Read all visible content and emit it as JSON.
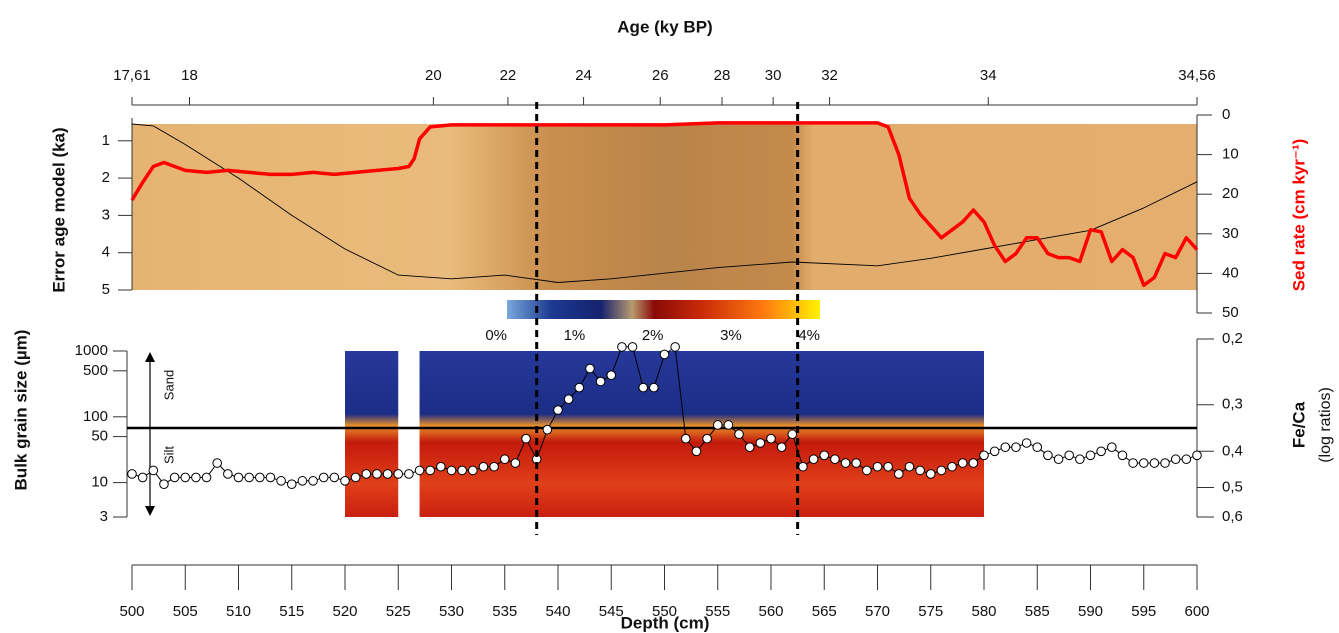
{
  "chart_data": [
    {
      "type": "line",
      "title": "Age (ky BP)",
      "xlim": [
        500,
        600
      ],
      "age_model": {
        "depth": [
          500,
          505.4,
          528.3,
          535.3,
          542.4,
          549.6,
          555.4,
          560.2,
          565.5,
          580.4,
          600
        ],
        "age": [
          17.61,
          18,
          20,
          22,
          24,
          26,
          28,
          30,
          32,
          34,
          34.56
        ]
      },
      "x2ticks": [
        {
          "value": 17.61,
          "label": "17,61"
        },
        18,
        20,
        22,
        24,
        26,
        28,
        30,
        32,
        34,
        {
          "value": 34.56,
          "label": "34,56"
        }
      ],
      "ylabel": "Error age model (ka)",
      "ylim": [
        5,
        0.55
      ],
      "yticks": [
        1,
        2,
        3,
        4,
        5
      ],
      "y2label": "Sed rate (cm kyr⁻¹)",
      "y2color": "#ff0000",
      "y2lim": [
        50,
        0
      ],
      "y2ticks": [
        0,
        10,
        20,
        30,
        40,
        50
      ],
      "series": [
        {
          "color": "#000000",
          "axis": "y",
          "width": 0.9,
          "x": [
            500,
            502,
            505,
            510,
            515,
            520,
            525,
            530,
            535,
            540,
            545,
            550,
            555,
            562,
            570,
            575,
            580,
            585,
            590,
            595,
            600
          ],
          "values": [
            0.55,
            0.6,
            1.1,
            2.0,
            3.0,
            3.9,
            4.6,
            4.7,
            4.6,
            4.8,
            4.7,
            4.55,
            4.4,
            4.25,
            4.35,
            4.15,
            3.9,
            3.65,
            3.4,
            2.8,
            2.1
          ]
        },
        {
          "color": "#ff0000",
          "axis": "y2",
          "width": 3.5,
          "x": [
            500,
            501,
            502,
            503,
            504,
            505,
            507,
            509,
            511,
            513,
            515,
            517,
            519,
            521,
            523,
            525,
            526,
            526.5,
            527,
            528,
            530,
            540,
            550,
            555,
            560,
            565,
            570,
            571,
            572,
            573,
            574,
            575,
            576,
            577,
            578,
            579,
            580,
            581,
            582,
            583,
            584,
            585,
            586,
            587,
            588,
            589,
            590,
            591,
            592,
            593,
            594,
            595,
            596,
            597,
            598,
            599,
            600
          ],
          "values": [
            21.5,
            17,
            13,
            12,
            13,
            14,
            14.5,
            14,
            14.5,
            15,
            15,
            14.5,
            15,
            14.5,
            14,
            13.5,
            13,
            11,
            6,
            3,
            2.5,
            2.5,
            2.5,
            2,
            2,
            2,
            2,
            3,
            10,
            21,
            25,
            28,
            31,
            29,
            27,
            24,
            27,
            33,
            37,
            35,
            31,
            31,
            35,
            36,
            36,
            37,
            29,
            29.5,
            37,
            34,
            36,
            43,
            41,
            35,
            36,
            31,
            34
          ]
        }
      ]
    },
    {
      "type": "line",
      "xlabel": "Depth (cm)",
      "xlim": [
        500,
        600
      ],
      "xticks": [
        500,
        505,
        510,
        515,
        520,
        525,
        530,
        535,
        540,
        545,
        550,
        555,
        560,
        565,
        570,
        575,
        580,
        585,
        590,
        595,
        600
      ],
      "ylabel": "Bulk grain size (µm)",
      "yscale": "log",
      "ylim": [
        3,
        1000
      ],
      "yticks": [
        3,
        10,
        50,
        100,
        500,
        1000
      ],
      "y2label": "Fe/Ca",
      "y2sublabel": "(log ratios)",
      "y2scale": "log",
      "y2lim": [
        0.6,
        0.2
      ],
      "y2ticks": [
        {
          "value": 0.2,
          "label": "0,2"
        },
        {
          "value": 0.3,
          "label": "0,3"
        },
        {
          "value": 0.4,
          "label": "0,4"
        },
        {
          "value": 0.5,
          "label": "0,5"
        },
        {
          "value": 0.6,
          "label": "0,6"
        }
      ],
      "annotations": [
        "Sand",
        "Silt"
      ],
      "colorbar": {
        "lim": [
          0,
          4
        ],
        "ticks": [
          {
            "value": 0,
            "label": "0%"
          },
          {
            "value": 1,
            "label": "1%"
          },
          {
            "value": 2,
            "label": "2%"
          },
          {
            "value": 3,
            "label": "3%"
          },
          {
            "value": 4,
            "label": "4%"
          }
        ]
      },
      "heatmap_depth_ranges": [
        [
          520,
          525
        ],
        [
          527,
          580
        ]
      ],
      "dashed_lines_depth": [
        538,
        562.5
      ],
      "series": [
        {
          "color": "#000000",
          "axis": "y2",
          "marker": "circle",
          "x": [
            500,
            501,
            502,
            503,
            504,
            505,
            506,
            507,
            508,
            509,
            510,
            511,
            512,
            513,
            514,
            515,
            516,
            517,
            518,
            519,
            520,
            521,
            522,
            523,
            524,
            525,
            526,
            527,
            528,
            529,
            530,
            531,
            532,
            533,
            534,
            535,
            536,
            537,
            538,
            539,
            540,
            541,
            542,
            543,
            544,
            545,
            546,
            547,
            548,
            549,
            550,
            551,
            552,
            553,
            554,
            555,
            556,
            557,
            558,
            559,
            560,
            561,
            562,
            563,
            564,
            565,
            566,
            567,
            568,
            569,
            570,
            571,
            572,
            573,
            574,
            575,
            576,
            577,
            578,
            579,
            580,
            581,
            582,
            583,
            584,
            585,
            586,
            587,
            588,
            589,
            590,
            591,
            592,
            593,
            594,
            595,
            596,
            597,
            598,
            599,
            600
          ],
          "values": [
            0.46,
            0.47,
            0.45,
            0.49,
            0.47,
            0.47,
            0.47,
            0.47,
            0.43,
            0.46,
            0.47,
            0.47,
            0.47,
            0.47,
            0.48,
            0.49,
            0.48,
            0.48,
            0.47,
            0.47,
            0.48,
            0.47,
            0.46,
            0.46,
            0.46,
            0.46,
            0.46,
            0.45,
            0.45,
            0.44,
            0.45,
            0.45,
            0.45,
            0.44,
            0.44,
            0.42,
            0.43,
            0.37,
            0.42,
            0.35,
            0.31,
            0.29,
            0.27,
            0.24,
            0.26,
            0.25,
            0.21,
            0.21,
            0.27,
            0.27,
            0.22,
            0.21,
            0.37,
            0.4,
            0.37,
            0.34,
            0.34,
            0.36,
            0.39,
            0.38,
            0.37,
            0.39,
            0.36,
            0.44,
            0.42,
            0.41,
            0.42,
            0.43,
            0.43,
            0.45,
            0.44,
            0.44,
            0.46,
            0.44,
            0.45,
            0.46,
            0.45,
            0.44,
            0.43,
            0.43,
            0.41,
            0.4,
            0.39,
            0.39,
            0.38,
            0.39,
            0.41,
            0.42,
            0.41,
            0.42,
            0.41,
            0.4,
            0.39,
            0.41,
            0.43,
            0.43,
            0.43,
            0.43,
            0.42,
            0.42,
            0.41
          ]
        }
      ]
    }
  ]
}
